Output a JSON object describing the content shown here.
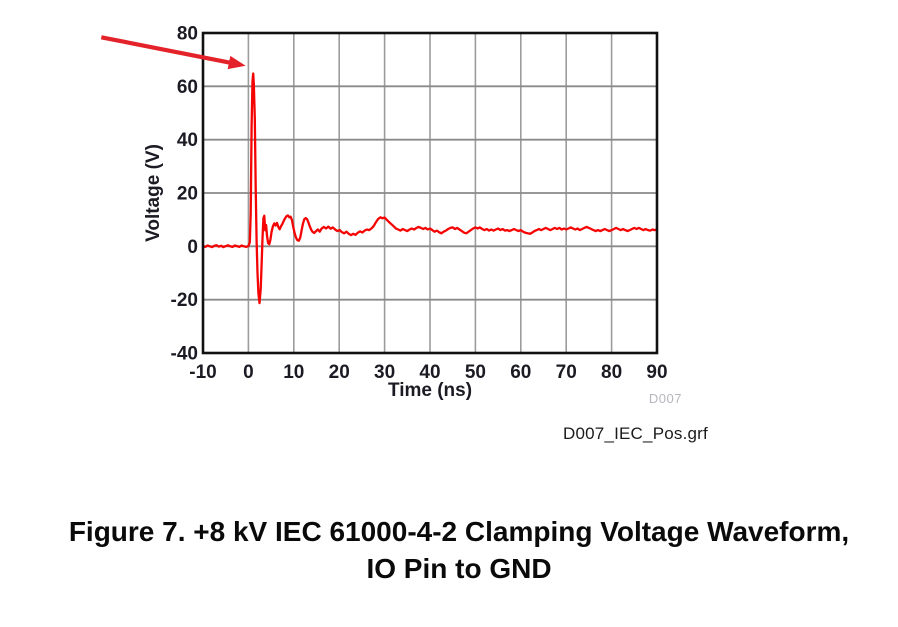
{
  "figure": {
    "watermark": "D007",
    "filename": "D007_IEC_Pos.grf",
    "caption_line1": "Figure 7. +8 kV IEC 61000-4-2 Clamping Voltage Waveform,",
    "caption_line2": "IO Pin to GND"
  },
  "colors": {
    "waveform": "#f50404",
    "arrow": "#e3222a",
    "grid_vertical": "#9c9c9c",
    "grid_horizontal": "#8a8a8a",
    "frame": "#111111",
    "axis_text": "#1c1b24",
    "plot_background": "#ffffff"
  },
  "chart_data": {
    "type": "line",
    "title": "",
    "xlabel": "Time (ns)",
    "ylabel": "Voltage (V)",
    "xlim": [
      -10,
      90
    ],
    "ylim": [
      -40,
      80
    ],
    "x_ticks": [
      -10,
      0,
      10,
      20,
      30,
      40,
      50,
      60,
      70,
      80,
      90
    ],
    "y_ticks": [
      -40,
      -20,
      0,
      20,
      40,
      60,
      80
    ],
    "grid": true,
    "legend": "none",
    "peak_voltage_v": 65,
    "undershoot_v": -21.3,
    "settled_level_v": 6,
    "annotations": [
      {
        "type": "arrow",
        "label": "peak pointer",
        "from": {
          "t": -32.4,
          "v": 78.4
        },
        "to": {
          "t": -0.6,
          "v": 67.7
        }
      }
    ],
    "series": [
      {
        "name": "+8 kV IEC 61000-4-2 clamping voltage, IO pin to GND",
        "color": "#f50404",
        "points": [
          [
            -10,
            0.1
          ],
          [
            -9.5,
            -0.2
          ],
          [
            -9,
            0.3
          ],
          [
            -8.5,
            0
          ],
          [
            -8,
            -0.3
          ],
          [
            -7.5,
            0.2
          ],
          [
            -7,
            0.4
          ],
          [
            -6.5,
            -0.1
          ],
          [
            -6,
            0.2
          ],
          [
            -5.5,
            -0.3
          ],
          [
            -5,
            0.1
          ],
          [
            -4.5,
            0.4
          ],
          [
            -4,
            0
          ],
          [
            -3.5,
            -0.2
          ],
          [
            -3,
            0.3
          ],
          [
            -2.5,
            0.1
          ],
          [
            -2,
            -0.2
          ],
          [
            -1.5,
            0.3
          ],
          [
            -1,
            0
          ],
          [
            -0.5,
            -0.2
          ],
          [
            0,
            0.1
          ],
          [
            0.3,
            1.5
          ],
          [
            0.5,
            12
          ],
          [
            0.7,
            45
          ],
          [
            0.9,
            62
          ],
          [
            1.05,
            64.8
          ],
          [
            1.2,
            61
          ],
          [
            1.4,
            48
          ],
          [
            1.6,
            22
          ],
          [
            1.8,
            2
          ],
          [
            2,
            -10
          ],
          [
            2.2,
            -17.5
          ],
          [
            2.45,
            -21.3
          ],
          [
            2.7,
            -16
          ],
          [
            2.9,
            -7
          ],
          [
            3.1,
            3
          ],
          [
            3.3,
            10.5
          ],
          [
            3.5,
            11.5
          ],
          [
            3.7,
            6
          ],
          [
            3.9,
            8
          ],
          [
            4.1,
            4
          ],
          [
            4.35,
            1.2
          ],
          [
            4.6,
            0.8
          ],
          [
            4.85,
            2.5
          ],
          [
            5.1,
            5.5
          ],
          [
            5.4,
            7.5
          ],
          [
            5.7,
            8.6
          ],
          [
            6,
            7.8
          ],
          [
            6.3,
            8.8
          ],
          [
            6.6,
            7.2
          ],
          [
            6.9,
            6.4
          ],
          [
            7.2,
            7.6
          ],
          [
            7.5,
            8.4
          ],
          [
            7.8,
            9.6
          ],
          [
            8.1,
            10.6
          ],
          [
            8.4,
            11.3
          ],
          [
            8.7,
            11.6
          ],
          [
            9,
            10.9
          ],
          [
            9.3,
            11.1
          ],
          [
            9.6,
            9.8
          ],
          [
            9.9,
            7.2
          ],
          [
            10.2,
            4.8
          ],
          [
            10.5,
            3.2
          ],
          [
            10.8,
            2.3
          ],
          [
            11.1,
            2.1
          ],
          [
            11.4,
            3.2
          ],
          [
            11.7,
            5.8
          ],
          [
            12,
            8.4
          ],
          [
            12.3,
            10.1
          ],
          [
            12.6,
            10.6
          ],
          [
            12.9,
            10.2
          ],
          [
            13.2,
            9.1
          ],
          [
            13.5,
            7.6
          ],
          [
            13.8,
            6.3
          ],
          [
            14.1,
            5.5
          ],
          [
            14.5,
            5
          ],
          [
            14.9,
            5.7
          ],
          [
            15.3,
            6.3
          ],
          [
            15.7,
            5.5
          ],
          [
            16.1,
            6.6
          ],
          [
            16.6,
            7.3
          ],
          [
            17.1,
            6.7
          ],
          [
            17.6,
            7.4
          ],
          [
            18.1,
            6.6
          ],
          [
            18.6,
            7.1
          ],
          [
            19.1,
            6.3
          ],
          [
            19.6,
            5.7
          ],
          [
            20.1,
            6.1
          ],
          [
            20.6,
            5.3
          ],
          [
            21.1,
            4.9
          ],
          [
            21.6,
            5.5
          ],
          [
            22.1,
            4.7
          ],
          [
            22.6,
            4.2
          ],
          [
            23.1,
            4.7
          ],
          [
            23.6,
            4.3
          ],
          [
            24.1,
            5.1
          ],
          [
            24.6,
            5.6
          ],
          [
            25.1,
            5.2
          ],
          [
            25.6,
            5.9
          ],
          [
            26.1,
            6.3
          ],
          [
            26.6,
            6.1
          ],
          [
            27.1,
            6.7
          ],
          [
            27.6,
            7.6
          ],
          [
            28.1,
            9.1
          ],
          [
            28.6,
            10.3
          ],
          [
            29.1,
            10.9
          ],
          [
            29.5,
            10.5
          ],
          [
            30,
            10.8
          ],
          [
            30.5,
            9.9
          ],
          [
            31,
            9.1
          ],
          [
            31.5,
            8.3
          ],
          [
            32,
            7.5
          ],
          [
            32.5,
            6.7
          ],
          [
            33,
            6.3
          ],
          [
            33.5,
            5.9
          ],
          [
            34,
            6.5
          ],
          [
            34.5,
            6.1
          ],
          [
            35,
            5.7
          ],
          [
            35.5,
            6.3
          ],
          [
            36,
            6.7
          ],
          [
            36.5,
            6.3
          ],
          [
            37,
            6.9
          ],
          [
            37.5,
            7.3
          ],
          [
            38,
            6.9
          ],
          [
            38.5,
            6.5
          ],
          [
            39,
            6.9
          ],
          [
            39.5,
            6.3
          ],
          [
            40,
            6.7
          ],
          [
            40.5,
            6.1
          ],
          [
            41,
            5.5
          ],
          [
            41.5,
            5.9
          ],
          [
            42,
            5.3
          ],
          [
            42.5,
            4.9
          ],
          [
            43,
            5.5
          ],
          [
            43.5,
            5.9
          ],
          [
            44,
            6.5
          ],
          [
            44.5,
            6.9
          ],
          [
            45,
            7.1
          ],
          [
            45.5,
            6.5
          ],
          [
            46,
            6.9
          ],
          [
            46.5,
            6.3
          ],
          [
            47,
            5.7
          ],
          [
            47.5,
            5.1
          ],
          [
            48,
            4.9
          ],
          [
            48.5,
            5.5
          ],
          [
            49,
            6.1
          ],
          [
            49.5,
            6.7
          ],
          [
            50,
            7.1
          ],
          [
            50.5,
            6.7
          ],
          [
            51,
            7.1
          ],
          [
            51.5,
            6.5
          ],
          [
            52,
            6.1
          ],
          [
            52.5,
            6.5
          ],
          [
            53,
            5.9
          ],
          [
            53.5,
            6.3
          ],
          [
            54,
            5.9
          ],
          [
            54.5,
            6.3
          ],
          [
            55,
            6.7
          ],
          [
            55.5,
            6.1
          ],
          [
            56,
            6.5
          ],
          [
            56.5,
            5.9
          ],
          [
            57,
            6.1
          ],
          [
            57.5,
            5.7
          ],
          [
            58,
            6.1
          ],
          [
            58.5,
            6.5
          ],
          [
            59,
            6.1
          ],
          [
            59.5,
            5.7
          ],
          [
            60,
            6.1
          ],
          [
            60.5,
            5.5
          ],
          [
            61,
            5.1
          ],
          [
            61.5,
            4.9
          ],
          [
            62,
            4.7
          ],
          [
            62.5,
            5.1
          ],
          [
            63,
            5.7
          ],
          [
            63.5,
            6.1
          ],
          [
            64,
            6.5
          ],
          [
            64.5,
            6.1
          ],
          [
            65,
            6.5
          ],
          [
            65.5,
            6.9
          ],
          [
            66,
            6.5
          ],
          [
            66.5,
            6.1
          ],
          [
            67,
            6.5
          ],
          [
            67.5,
            6.9
          ],
          [
            68,
            6.5
          ],
          [
            68.5,
            6.9
          ],
          [
            69,
            6.3
          ],
          [
            69.5,
            6.7
          ],
          [
            70,
            6.3
          ],
          [
            70.5,
            6.7
          ],
          [
            71,
            7.1
          ],
          [
            71.5,
            6.7
          ],
          [
            72,
            6.3
          ],
          [
            72.5,
            6.7
          ],
          [
            73,
            6.1
          ],
          [
            73.5,
            6.5
          ],
          [
            74,
            6.9
          ],
          [
            74.5,
            7.3
          ],
          [
            75,
            6.9
          ],
          [
            75.5,
            6.5
          ],
          [
            76,
            6.1
          ],
          [
            76.5,
            5.7
          ],
          [
            77,
            6.1
          ],
          [
            77.5,
            5.7
          ],
          [
            78,
            6.1
          ],
          [
            78.5,
            6.5
          ],
          [
            79,
            6.1
          ],
          [
            79.5,
            5.7
          ],
          [
            80,
            6.1
          ],
          [
            80.5,
            6.5
          ],
          [
            81,
            6.9
          ],
          [
            81.5,
            6.5
          ],
          [
            82,
            6.1
          ],
          [
            82.5,
            6.5
          ],
          [
            83,
            6.1
          ],
          [
            83.5,
            5.7
          ],
          [
            84,
            6.1
          ],
          [
            84.5,
            6.5
          ],
          [
            85,
            6.9
          ],
          [
            85.5,
            6.5
          ],
          [
            86,
            6.9
          ],
          [
            86.5,
            6.5
          ],
          [
            87,
            6.1
          ],
          [
            87.5,
            6.5
          ],
          [
            88,
            6.1
          ],
          [
            88.5,
            5.9
          ],
          [
            89,
            6.3
          ],
          [
            89.5,
            6.1
          ],
          [
            90,
            6.3
          ]
        ]
      }
    ]
  }
}
